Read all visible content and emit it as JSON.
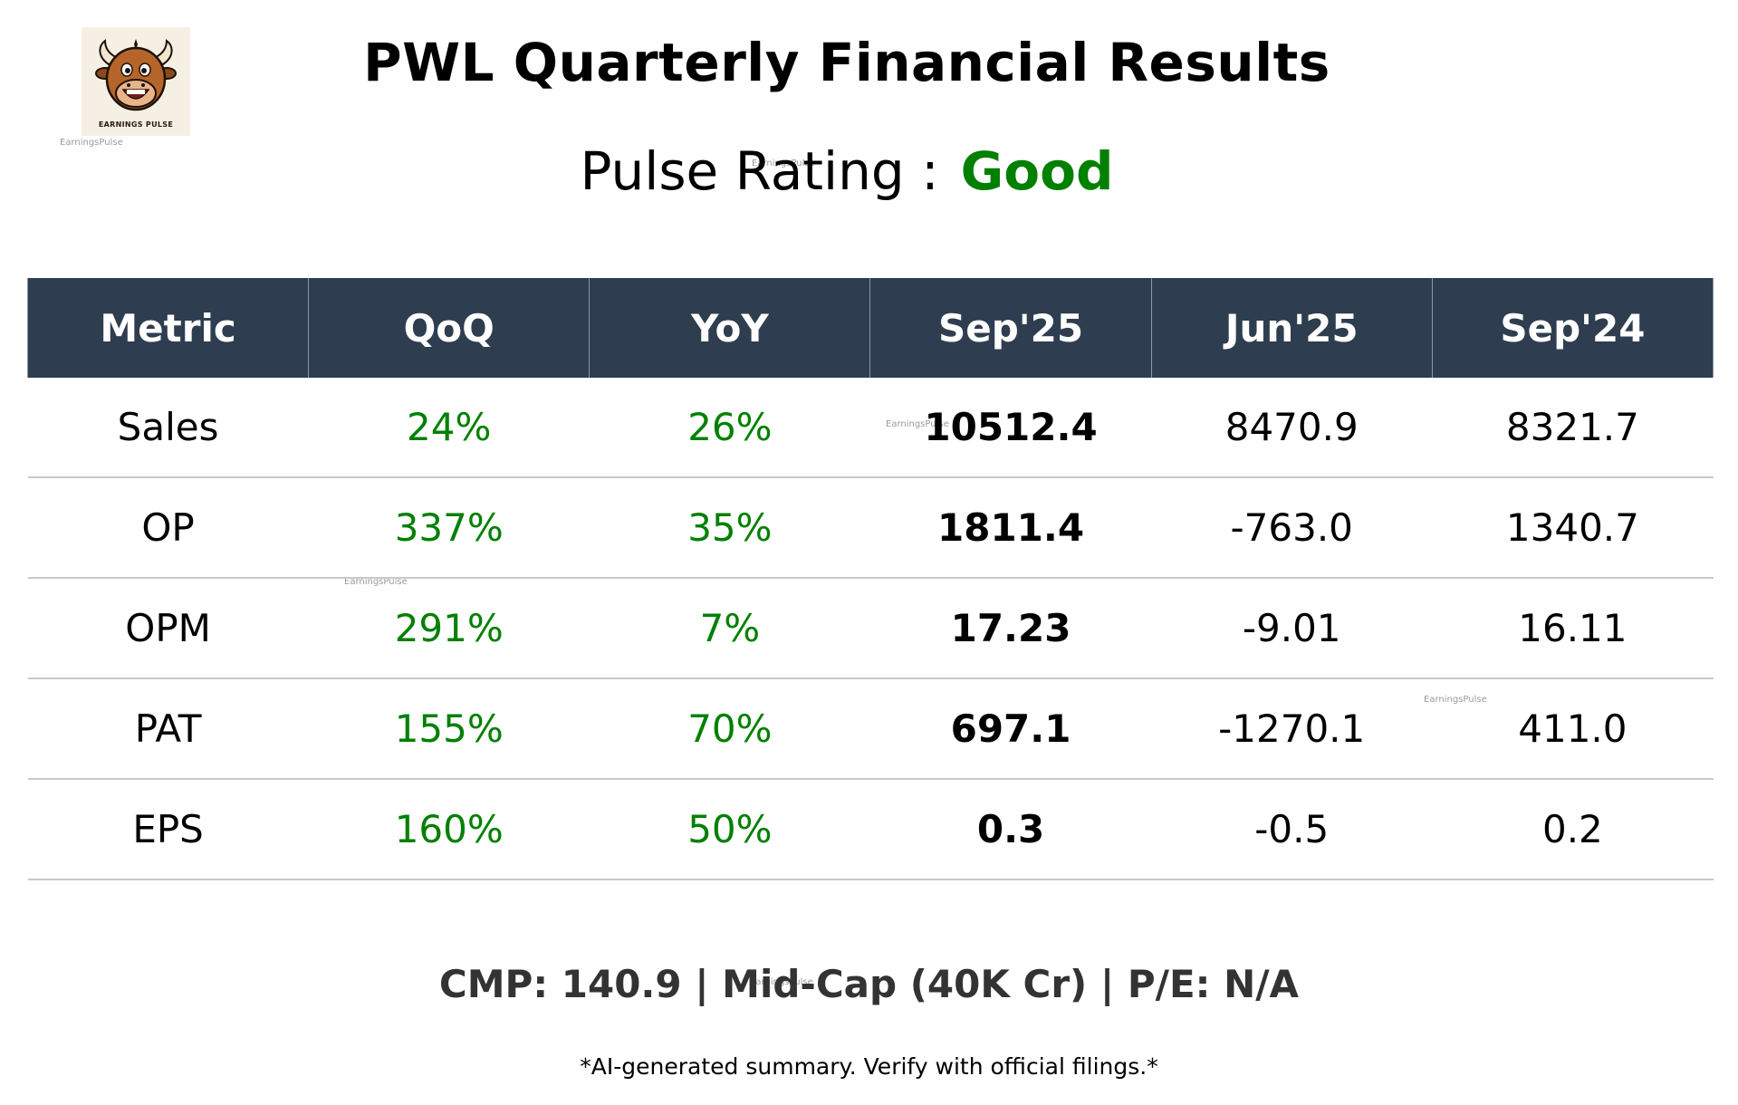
{
  "logo": {
    "text": "EARNINGS PULSE",
    "icon": "bull-mascot-icon"
  },
  "watermark": "EarningsPulse",
  "title": "PWL Quarterly Financial Results",
  "rating": {
    "label": "Pulse Rating :",
    "value": "Good",
    "value_color": "#008000"
  },
  "table": {
    "headers": [
      "Metric",
      "QoQ",
      "YoY",
      "Sep'25",
      "Jun'25",
      "Sep'24"
    ],
    "rows": [
      {
        "metric": "Sales",
        "qoq": "24%",
        "yoy": "26%",
        "sep25": "10512.4",
        "jun25": "8470.9",
        "sep24": "8321.7"
      },
      {
        "metric": "OP",
        "qoq": "337%",
        "yoy": "35%",
        "sep25": "1811.4",
        "jun25": "-763.0",
        "sep24": "1340.7"
      },
      {
        "metric": "OPM",
        "qoq": "291%",
        "yoy": "7%",
        "sep25": "17.23",
        "jun25": "-9.01",
        "sep24": "16.11"
      },
      {
        "metric": "PAT",
        "qoq": "155%",
        "yoy": "70%",
        "sep25": "697.1",
        "jun25": "-1270.1",
        "sep24": "411.0"
      },
      {
        "metric": "EPS",
        "qoq": "160%",
        "yoy": "50%",
        "sep25": "0.3",
        "jun25": "-0.5",
        "sep24": "0.2"
      }
    ],
    "header_bg": "#2e3e50",
    "positive_color": "#008000"
  },
  "footer": {
    "cmp_line": "CMP: 140.9 | Mid-Cap (40K Cr) | P/E: N/A",
    "disclaimer": "*AI-generated summary. Verify with official filings.*"
  }
}
